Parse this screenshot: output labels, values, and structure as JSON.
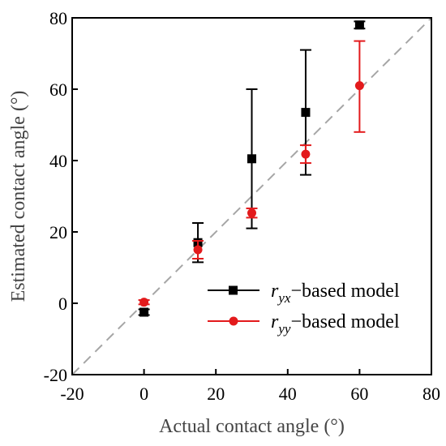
{
  "chart_data": {
    "type": "scatter",
    "xlabel": "Actual contact angle  (°)",
    "ylabel": "Estimated contact angle  (°)",
    "xlim": [
      -20,
      80
    ],
    "ylim": [
      -20,
      80
    ],
    "xticks": [
      "-20",
      "0",
      "20",
      "40",
      "60",
      "80"
    ],
    "yticks": [
      "-20",
      "0",
      "20",
      "40",
      "60",
      "80"
    ],
    "grid": false,
    "legend_position": "lower-right",
    "reference_line": {
      "style": "dashed",
      "color": "#a6a6a6",
      "from": [
        -20,
        -20
      ],
      "to": [
        80,
        80
      ]
    },
    "series": [
      {
        "name": "r_yx-based model",
        "label_symbol": "r",
        "label_subscript": "yx",
        "label_suffix": "−based model",
        "color": "#000000",
        "marker": "square",
        "points": [
          {
            "x": 0,
            "y": -2.5,
            "err_low": 0.8,
            "err_high": 0.8
          },
          {
            "x": 15,
            "y": 17,
            "err_low": 5.5,
            "err_high": 5.5
          },
          {
            "x": 30,
            "y": 40.5,
            "err_low": 19.5,
            "err_high": 19.5
          },
          {
            "x": 45,
            "y": 53.5,
            "err_low": 17.5,
            "err_high": 17.5
          },
          {
            "x": 60,
            "y": 78,
            "err_low": 1.0,
            "err_high": 1.0
          }
        ]
      },
      {
        "name": "r_yy-based model",
        "label_symbol": "r",
        "label_subscript": "yy",
        "label_suffix": "−based model",
        "color": "#e31a1c",
        "marker": "circle",
        "points": [
          {
            "x": 0,
            "y": 0.3,
            "err_low": 0.6,
            "err_high": 0.6
          },
          {
            "x": 15,
            "y": 15,
            "err_low": 2.5,
            "err_high": 2.5
          },
          {
            "x": 30,
            "y": 25.3,
            "err_low": 1.3,
            "err_high": 1.3
          },
          {
            "x": 45,
            "y": 41.8,
            "err_low": 2.5,
            "err_high": 2.5
          },
          {
            "x": 60,
            "y": 61,
            "err_low": 13,
            "err_high": 12.5
          }
        ]
      }
    ]
  }
}
